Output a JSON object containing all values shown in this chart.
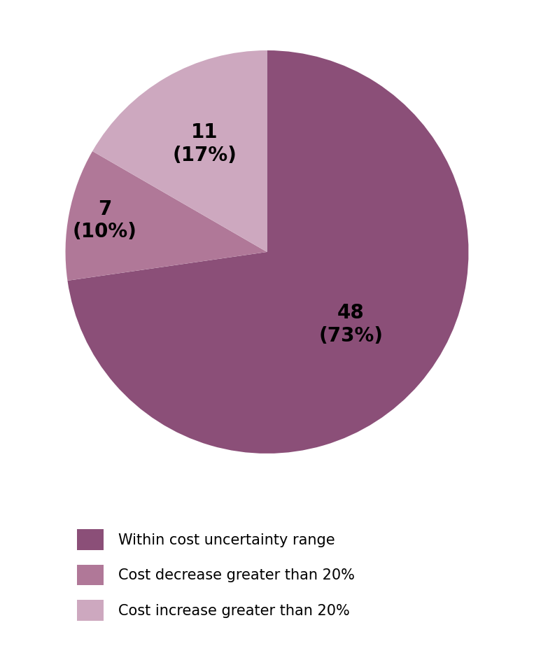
{
  "slices": [
    48,
    7,
    11
  ],
  "labels": [
    "Within cost uncertainty range",
    "Cost decrease greater than 20%",
    "Cost increase greater than 20%"
  ],
  "counts": [
    48,
    7,
    11
  ],
  "percentages": [
    73,
    10,
    17
  ],
  "colors": [
    "#8B4F78",
    "#B07898",
    "#CDA8BF"
  ],
  "label_texts": [
    "48\n(73%)",
    "7\n(10%)",
    "11\n(17%)"
  ],
  "start_angle": 90,
  "legend_fontsize": 15,
  "label_fontsize": 20,
  "background_color": "#ffffff"
}
